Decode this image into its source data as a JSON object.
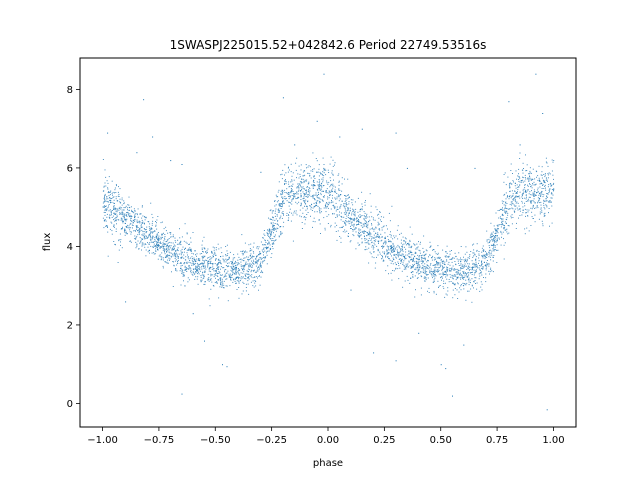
{
  "chart_data": {
    "type": "scatter",
    "title": "1SWASPJ225015.52+042842.6 Period 22749.53516s",
    "xlabel": "phase",
    "ylabel": "flux",
    "xlim": [
      -1.1,
      1.1
    ],
    "ylim": [
      -0.6,
      8.8
    ],
    "x_ticks": [
      -1.0,
      -0.75,
      -0.5,
      -0.25,
      0.0,
      0.25,
      0.5,
      0.75,
      1.0
    ],
    "x_tick_labels": [
      "−1.00",
      "−0.75",
      "−0.50",
      "−0.25",
      "0.00",
      "0.25",
      "0.50",
      "0.75",
      "1.00"
    ],
    "y_ticks": [
      0,
      2,
      4,
      6,
      8
    ],
    "y_tick_labels": [
      "0",
      "2",
      "4",
      "6",
      "8"
    ],
    "grid": false,
    "series": [
      {
        "color": "#1f77b4",
        "profile": {
          "phase": [
            -1.0,
            -0.9,
            -0.8,
            -0.7,
            -0.6,
            -0.5,
            -0.4,
            -0.3,
            -0.25,
            -0.2,
            -0.1,
            0.0,
            0.1,
            0.2,
            0.3,
            0.4,
            0.5,
            0.6,
            0.7,
            0.75,
            0.8,
            0.9,
            1.0
          ],
          "flux": [
            5.2,
            4.7,
            4.3,
            3.9,
            3.6,
            3.4,
            3.35,
            3.6,
            4.4,
            5.2,
            5.4,
            5.4,
            4.7,
            4.3,
            3.9,
            3.6,
            3.4,
            3.35,
            3.6,
            4.4,
            5.2,
            5.4,
            5.4
          ]
        },
        "points": [
          [
            -0.85,
            6.4
          ],
          [
            -0.82,
            7.75
          ],
          [
            -0.78,
            6.8
          ],
          [
            -0.7,
            6.2
          ],
          [
            -0.65,
            6.1
          ],
          [
            -0.6,
            2.3
          ],
          [
            -0.55,
            1.6
          ],
          [
            -0.47,
            1.0
          ],
          [
            -0.45,
            0.95
          ],
          [
            -0.3,
            5.9
          ],
          [
            -0.2,
            7.8
          ],
          [
            -0.15,
            6.6
          ],
          [
            -0.05,
            7.2
          ],
          [
            -0.02,
            8.4
          ],
          [
            0.05,
            6.8
          ],
          [
            0.15,
            7.0
          ],
          [
            0.3,
            6.9
          ],
          [
            0.35,
            6.0
          ],
          [
            0.2,
            1.3
          ],
          [
            0.4,
            1.8
          ],
          [
            0.5,
            1.0
          ],
          [
            0.52,
            0.9
          ],
          [
            0.6,
            1.5
          ],
          [
            0.65,
            6.0
          ],
          [
            0.8,
            7.7
          ],
          [
            0.85,
            6.6
          ],
          [
            0.92,
            8.4
          ],
          [
            0.95,
            7.4
          ],
          [
            0.97,
            -0.15
          ],
          [
            -0.98,
            6.9
          ],
          [
            0.55,
            0.2
          ],
          [
            -0.65,
            0.25
          ],
          [
            0.1,
            2.9
          ],
          [
            -0.9,
            2.6
          ],
          [
            0.3,
            1.1
          ]
        ]
      }
    ]
  }
}
